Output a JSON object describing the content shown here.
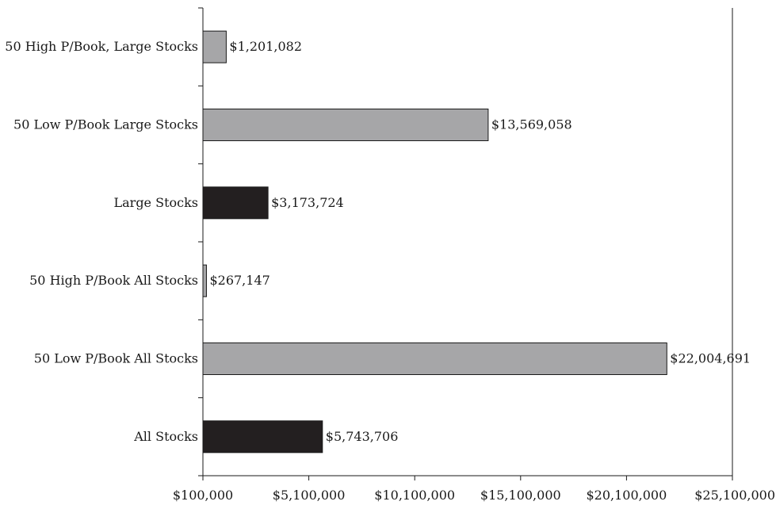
{
  "chart_data": {
    "type": "bar",
    "orientation": "horizontal",
    "title": "",
    "xlabel": "",
    "ylabel": "",
    "xlim": [
      100000,
      25100000
    ],
    "grid": false,
    "legend": "none",
    "categories": [
      "50 High P/Book, Large Stocks",
      "50 Low P/Book Large Stocks",
      "Large Stocks",
      "50 High P/Book All Stocks",
      "50 Low P/Book All Stocks",
      "All Stocks"
    ],
    "values": [
      1201082,
      13569058,
      3173724,
      267147,
      22004691,
      5743706
    ],
    "value_labels": [
      "$1,201,082",
      "$13,569,058",
      "$3,173,724",
      "$267,147",
      "$22,004,691",
      "$5,743,706"
    ],
    "bar_colors": [
      "#a6a6a8",
      "#a6a6a8",
      "#231f20",
      "#a6a6a8",
      "#a6a6a8",
      "#231f20"
    ],
    "x_ticks": [
      100000,
      5100000,
      10100000,
      15100000,
      20100000,
      25100000
    ],
    "x_tick_labels": [
      "$100,000",
      "$5,100,000",
      "$10,100,000",
      "$15,100,000",
      "$20,100,000",
      "$25,100,000"
    ]
  }
}
